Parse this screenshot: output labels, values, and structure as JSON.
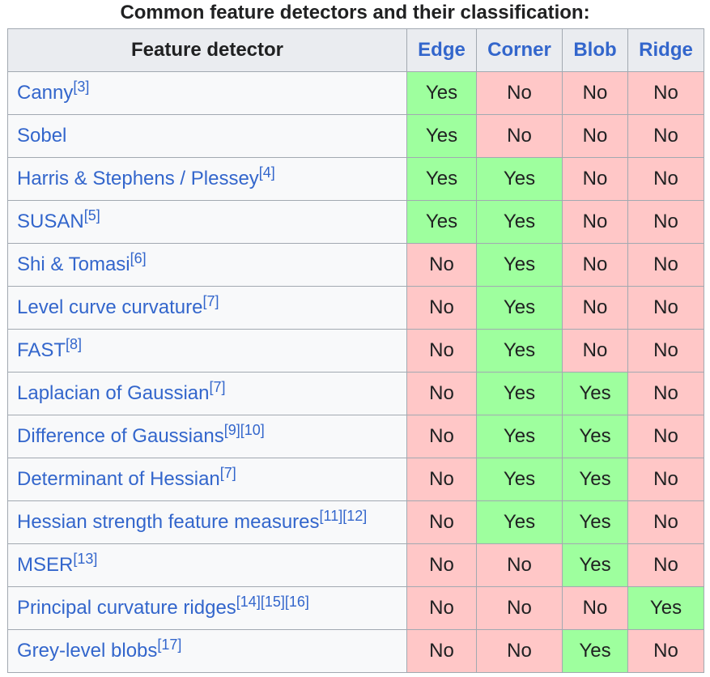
{
  "caption": "Common feature detectors and their classification:",
  "columns": {
    "detector": "Feature detector",
    "edge": "Edge",
    "corner": "Corner",
    "blob": "Blob",
    "ridge": "Ridge"
  },
  "rows": [
    {
      "name": "Canny",
      "refs": "[3]",
      "edge": "Yes",
      "corner": "No",
      "blob": "No",
      "ridge": "No"
    },
    {
      "name": "Sobel",
      "refs": "",
      "edge": "Yes",
      "corner": "No",
      "blob": "No",
      "ridge": "No"
    },
    {
      "name": "Harris & Stephens / Plessey",
      "refs": "[4]",
      "edge": "Yes",
      "corner": "Yes",
      "blob": "No",
      "ridge": "No"
    },
    {
      "name": "SUSAN",
      "refs": "[5]",
      "edge": "Yes",
      "corner": "Yes",
      "blob": "No",
      "ridge": "No"
    },
    {
      "name": "Shi & Tomasi",
      "refs": "[6]",
      "edge": "No",
      "corner": "Yes",
      "blob": "No",
      "ridge": "No"
    },
    {
      "name": "Level curve curvature",
      "refs": "[7]",
      "edge": "No",
      "corner": "Yes",
      "blob": "No",
      "ridge": "No"
    },
    {
      "name": "FAST",
      "refs": "[8]",
      "edge": "No",
      "corner": "Yes",
      "blob": "No",
      "ridge": "No"
    },
    {
      "name": "Laplacian of Gaussian",
      "refs": "[7]",
      "edge": "No",
      "corner": "Yes",
      "blob": "Yes",
      "ridge": "No"
    },
    {
      "name": "Difference of Gaussians",
      "refs": "[9][10]",
      "edge": "No",
      "corner": "Yes",
      "blob": "Yes",
      "ridge": "No"
    },
    {
      "name": "Determinant of Hessian",
      "refs": "[7]",
      "edge": "No",
      "corner": "Yes",
      "blob": "Yes",
      "ridge": "No"
    },
    {
      "name": "Hessian strength feature measures",
      "refs": "[11][12]",
      "edge": "No",
      "corner": "Yes",
      "blob": "Yes",
      "ridge": "No"
    },
    {
      "name": "MSER",
      "refs": "[13]",
      "edge": "No",
      "corner": "No",
      "blob": "Yes",
      "ridge": "No"
    },
    {
      "name": "Principal curvature ridges",
      "refs": "[14][15][16]",
      "edge": "No",
      "corner": "No",
      "blob": "No",
      "ridge": "Yes"
    },
    {
      "name": "Grey-level blobs",
      "refs": "[17]",
      "edge": "No",
      "corner": "No",
      "blob": "Yes",
      "ridge": "No"
    }
  ],
  "colors": {
    "yes_bg": "#9eff9e",
    "no_bg": "#ffc7c7",
    "link": "#3366cc",
    "header_bg": "#eaecf0",
    "name_bg": "#f8f9fa",
    "border": "#a2a9b1"
  }
}
